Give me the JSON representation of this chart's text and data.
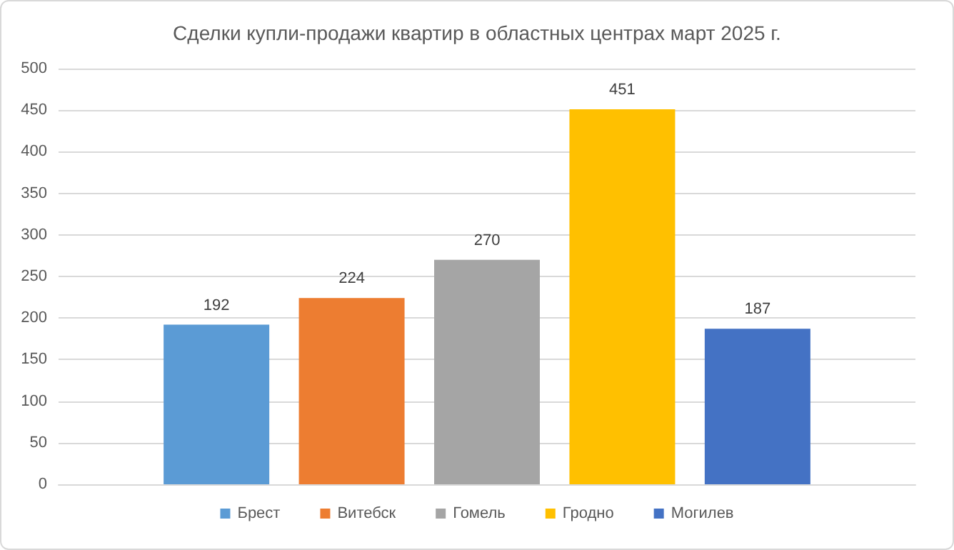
{
  "chart_data": {
    "type": "bar",
    "title": "Сделки купли-продажи квартир в областных центрах март 2025 г.",
    "categories": [
      null
    ],
    "series": [
      {
        "name": "Брест",
        "color": "#5b9bd5",
        "values": [
          192
        ]
      },
      {
        "name": "Витебск",
        "color": "#ed7d31",
        "values": [
          224
        ]
      },
      {
        "name": "Гомель",
        "color": "#a5a5a5",
        "values": [
          270
        ]
      },
      {
        "name": "Гродно",
        "color": "#ffc000",
        "values": [
          451
        ]
      },
      {
        "name": "Могилев",
        "color": "#4472c4",
        "values": [
          187
        ]
      }
    ],
    "ylim": [
      0,
      500
    ],
    "yticks": [
      0,
      50,
      100,
      150,
      200,
      250,
      300,
      350,
      400,
      450,
      500
    ],
    "grid": "y",
    "legend": "bottom",
    "data_labels": true
  }
}
